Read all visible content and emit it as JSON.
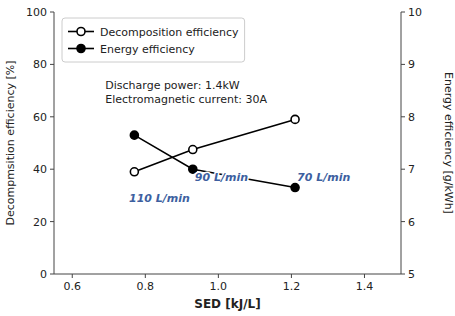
{
  "chart_data": {
    "type": "line",
    "xlabel": "SED [kJ/L]",
    "ylabel": "Decompmsition efficiency [%]",
    "y2label": "Energy efficiency [g/kWh]",
    "x": [
      0.77,
      0.93,
      1.21
    ],
    "series": [
      {
        "name": "Decomposition efficiency",
        "color": "black",
        "marker": "open-circle",
        "line_style": "solid",
        "values": [
          39,
          47.5,
          59
        ]
      },
      {
        "name": "Energy efficiency",
        "color": "black",
        "marker": "circle",
        "line_style": "solid",
        "axis": "y2",
        "values": [
          7.65,
          7.0,
          6.65
        ]
      }
    ],
    "xlim": [
      0.55,
      1.5
    ],
    "xticks": [
      0.6,
      0.8,
      {
        "value": 1.0,
        "label": "1.0"
      },
      1.2,
      1.4
    ],
    "ylim": [
      0,
      100
    ],
    "yticks": [
      0,
      20,
      40,
      60,
      80,
      100
    ],
    "y2lim": [
      5,
      10
    ],
    "y2ticks": [
      5,
      6,
      7,
      8,
      9,
      10
    ],
    "annotations": [
      {
        "text": "110 L/min",
        "x": 0.75,
        "y": 32,
        "color": "#3D5FA0"
      },
      {
        "text": "90 L/min",
        "x": 0.93,
        "y": 40,
        "color": "#3D5FA0"
      },
      {
        "text": "70 L/min",
        "x": 1.21,
        "y": 40,
        "color": "#3D5FA0"
      },
      {
        "text": "Discharge power: 1.4kW\nElectromagnetic current: 30A",
        "x": 0.685,
        "y": 75
      }
    ],
    "legend": "upper left",
    "grid": false
  }
}
